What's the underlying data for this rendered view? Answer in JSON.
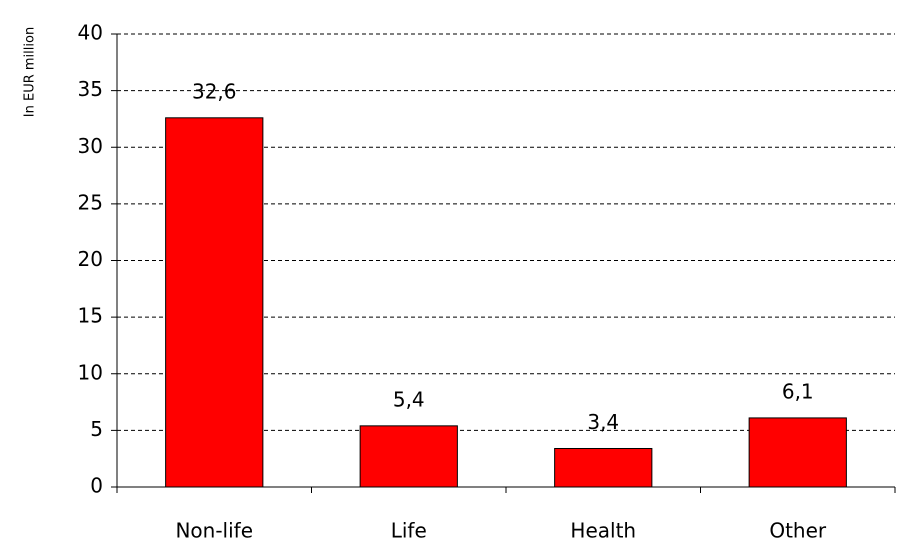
{
  "chart_data": {
    "type": "bar",
    "y_label": "In EUR million",
    "categories": [
      "Non-life",
      "Life",
      "Health",
      "Other"
    ],
    "values": [
      32.6,
      5.4,
      3.4,
      6.1
    ],
    "value_labels": [
      "32,6",
      "5,4",
      "3,4",
      "6,1"
    ],
    "color": "#ff0000",
    "ylim": [
      0,
      40
    ],
    "yticks": [
      0,
      5,
      10,
      15,
      20,
      25,
      30,
      35,
      40
    ],
    "grid": true
  }
}
